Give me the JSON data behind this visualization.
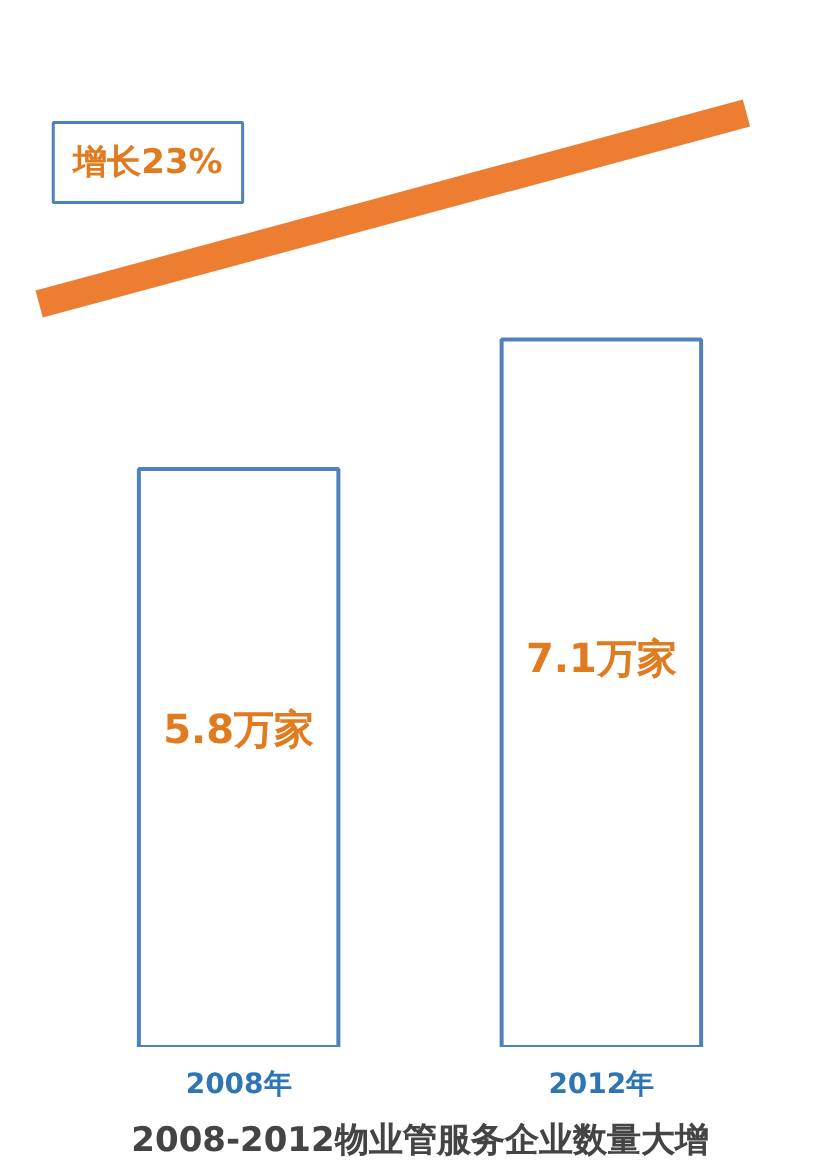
{
  "chart_data": {
    "type": "bar",
    "title": "2008-2012物业管服务企业数量大增",
    "categories": [
      "2008年",
      "2012年"
    ],
    "values": [
      5.8,
      7.1
    ],
    "value_labels": [
      "5.8万家",
      "7.1万家"
    ],
    "color": "#4f81bd",
    "annotations": [
      "增长23%"
    ],
    "grid": false
  }
}
